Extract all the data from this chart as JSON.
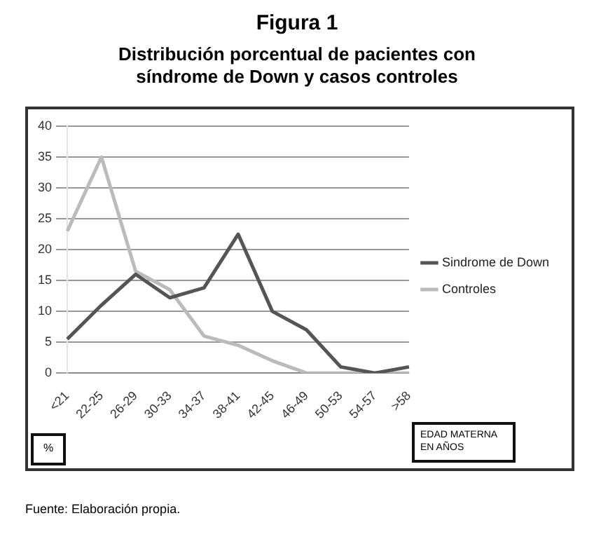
{
  "chart_data": {
    "type": "line",
    "title": "Figura 1",
    "subtitle": "Distribución porcentual de pacientes con síndrome de Down y casos controles",
    "xlabel": "EDAD MATERNA EN AÑOS",
    "ylabel": "%",
    "categories": [
      "<21",
      "22-25",
      "26-29",
      "30-33",
      "34-37",
      "38-41",
      "42-45",
      "46-49",
      "50-53",
      "54-57",
      ">58"
    ],
    "series": [
      {
        "name": "Sindrome de Down",
        "color": "#555555",
        "values": [
          5.5,
          11,
          16,
          12.2,
          13.8,
          22.5,
          10,
          7,
          1,
          0,
          1
        ]
      },
      {
        "name": "Controles",
        "color": "#bbbbbb",
        "values": [
          23,
          35,
          16.5,
          13.5,
          6,
          4.5,
          2,
          0,
          0,
          0,
          0
        ]
      }
    ],
    "ylim": [
      0,
      40
    ],
    "yticks": [
      0,
      5,
      10,
      15,
      20,
      25,
      30,
      35,
      40
    ],
    "grid": "y",
    "legend": "right",
    "marker": "none",
    "line_style": "solid",
    "annotations": [
      "Fuente: Elaboración propia."
    ]
  }
}
